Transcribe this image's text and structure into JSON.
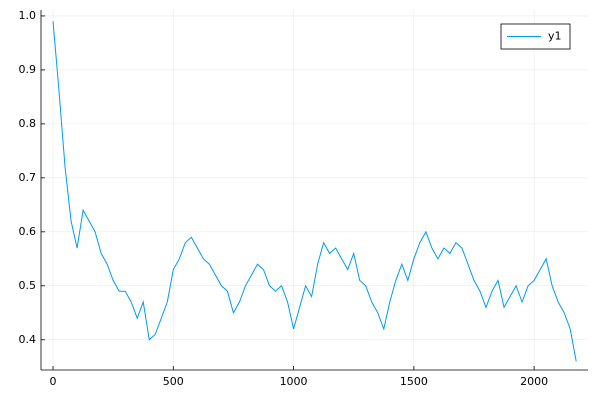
{
  "chart_data": {
    "type": "line",
    "x": [
      0,
      25,
      50,
      75,
      100,
      125,
      150,
      175,
      200,
      225,
      250,
      275,
      300,
      325,
      350,
      375,
      400,
      425,
      450,
      475,
      500,
      525,
      550,
      575,
      600,
      625,
      650,
      675,
      700,
      725,
      750,
      775,
      800,
      825,
      850,
      875,
      900,
      925,
      950,
      975,
      1000,
      1025,
      1050,
      1075,
      1100,
      1125,
      1150,
      1175,
      1200,
      1225,
      1250,
      1275,
      1300,
      1325,
      1350,
      1375,
      1400,
      1425,
      1450,
      1475,
      1500,
      1525,
      1550,
      1575,
      1600,
      1625,
      1650,
      1675,
      1700,
      1725,
      1750,
      1775,
      1800,
      1825,
      1850,
      1875,
      1900,
      1925,
      1950,
      1975,
      2000,
      2025,
      2050,
      2075,
      2100,
      2125,
      2150,
      2175
    ],
    "series": [
      {
        "name": "y1",
        "color": "#009af9",
        "values": [
          0.99,
          0.86,
          0.72,
          0.62,
          0.57,
          0.64,
          0.62,
          0.6,
          0.56,
          0.54,
          0.51,
          0.49,
          0.49,
          0.47,
          0.44,
          0.47,
          0.4,
          0.41,
          0.44,
          0.47,
          0.53,
          0.55,
          0.58,
          0.59,
          0.57,
          0.55,
          0.54,
          0.52,
          0.5,
          0.49,
          0.45,
          0.47,
          0.5,
          0.52,
          0.54,
          0.53,
          0.5,
          0.49,
          0.5,
          0.47,
          0.42,
          0.46,
          0.5,
          0.48,
          0.54,
          0.58,
          0.56,
          0.57,
          0.55,
          0.53,
          0.56,
          0.51,
          0.5,
          0.47,
          0.45,
          0.42,
          0.47,
          0.51,
          0.54,
          0.51,
          0.55,
          0.58,
          0.6,
          0.57,
          0.55,
          0.57,
          0.56,
          0.58,
          0.57,
          0.54,
          0.51,
          0.49,
          0.46,
          0.49,
          0.51,
          0.46,
          0.48,
          0.5,
          0.47,
          0.5,
          0.51,
          0.53,
          0.55,
          0.5,
          0.47,
          0.45,
          0.42,
          0.36
        ]
      }
    ],
    "xlim": [
      -50,
      2224
    ],
    "xticks": [
      0,
      500,
      1000,
      1500,
      2000
    ],
    "ylim": [
      0.344,
      1.011
    ],
    "yticks": [
      0.4,
      0.5,
      0.6,
      0.7,
      0.8,
      0.9,
      {
        "value": 1.0,
        "label": "1.0"
      }
    ],
    "grid": true,
    "legend": "top-right"
  }
}
